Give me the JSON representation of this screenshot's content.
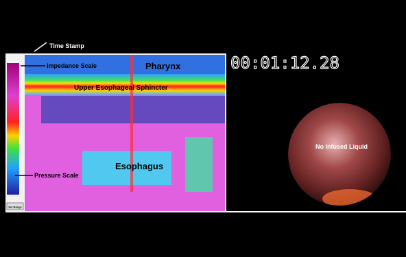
{
  "annotations": {
    "time_stamp": "Time Stamp",
    "impedance_scale": "Impedance Scale",
    "pressure_scale": "Pressure Scale",
    "pharynx": "Pharynx",
    "upper_esophageal_sphincter": "Upper Esophageal Sphincter",
    "esophagus": "Esophagus",
    "no_infused_liquid": "No Infused Liquid"
  },
  "timer": "00:01:12.28",
  "button": "Set Range"
}
